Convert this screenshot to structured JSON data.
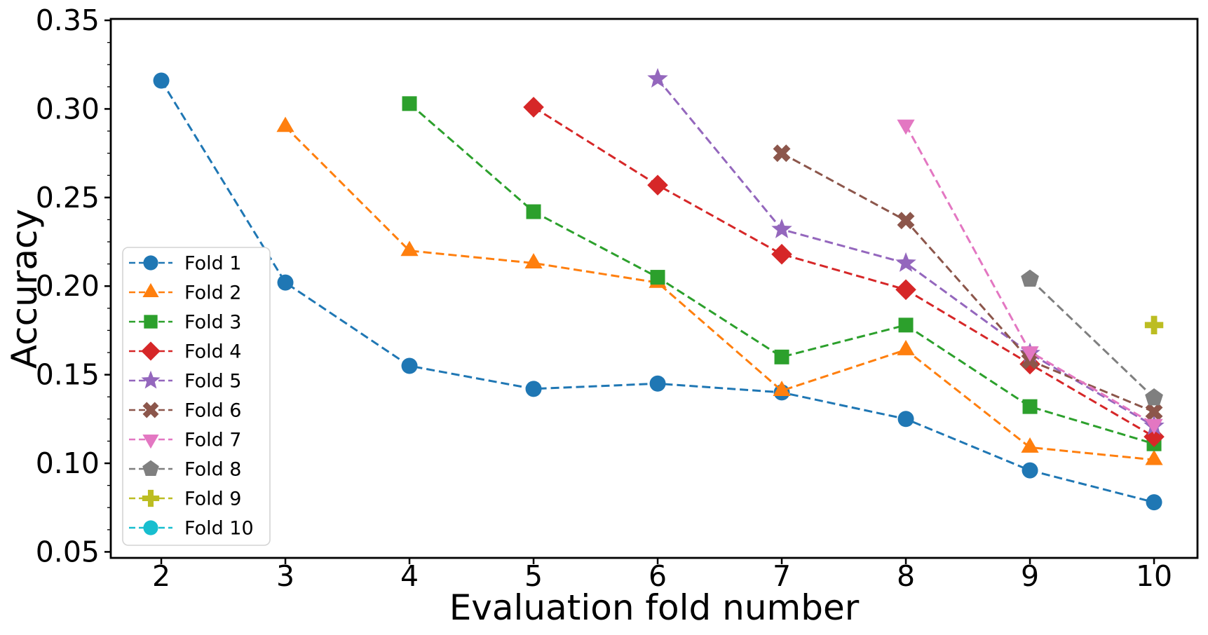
{
  "chart_data": {
    "type": "line",
    "title": "",
    "xlabel": "Evaluation fold number",
    "ylabel": "Accuracy",
    "xlim": [
      1.593,
      10.35
    ],
    "ylim": [
      0.0466,
      0.3508
    ],
    "x_ticks": [
      2,
      3,
      4,
      5,
      6,
      7,
      8,
      9,
      10
    ],
    "y_ticks": [
      0.05,
      0.1,
      0.15,
      0.2,
      0.25,
      0.3,
      0.35
    ],
    "y_tick_labels": [
      "0.05",
      "0.10",
      "0.15",
      "0.20",
      "0.25",
      "0.30",
      "0.35"
    ],
    "y_minor_tick_step": 0.0125,
    "grid": false,
    "line_style": "dashed",
    "legend_position": "lower-left",
    "axis_color": "#000000",
    "background_color": "#ffffff",
    "legend_border_color": "#d4d4d4",
    "series": [
      {
        "name": "Fold 1",
        "color": "#1f77b4",
        "marker": "circle",
        "points": [
          [
            2,
            0.316
          ],
          [
            3,
            0.202
          ],
          [
            4,
            0.155
          ],
          [
            5,
            0.142
          ],
          [
            6,
            0.145
          ],
          [
            7,
            0.14
          ],
          [
            8,
            0.125
          ],
          [
            9,
            0.096
          ],
          [
            10,
            0.078
          ]
        ]
      },
      {
        "name": "Fold 2",
        "color": "#ff7f0e",
        "marker": "triangle-up",
        "points": [
          [
            3,
            0.29
          ],
          [
            4,
            0.22
          ],
          [
            5,
            0.213
          ],
          [
            6,
            0.202
          ],
          [
            7,
            0.141
          ],
          [
            8,
            0.164
          ],
          [
            9,
            0.109
          ],
          [
            10,
            0.102
          ]
        ]
      },
      {
        "name": "Fold 3",
        "color": "#2ca02c",
        "marker": "square",
        "points": [
          [
            4,
            0.303
          ],
          [
            5,
            0.242
          ],
          [
            6,
            0.205
          ],
          [
            7,
            0.16
          ],
          [
            8,
            0.178
          ],
          [
            9,
            0.132
          ],
          [
            10,
            0.111
          ]
        ]
      },
      {
        "name": "Fold 4",
        "color": "#d62728",
        "marker": "diamond",
        "points": [
          [
            5,
            0.301
          ],
          [
            6,
            0.257
          ],
          [
            7,
            0.218
          ],
          [
            8,
            0.198
          ],
          [
            9,
            0.156
          ],
          [
            10,
            0.115
          ]
        ]
      },
      {
        "name": "Fold 5",
        "color": "#9467bd",
        "marker": "star",
        "points": [
          [
            6,
            0.317
          ],
          [
            7,
            0.232
          ],
          [
            8,
            0.213
          ],
          [
            9,
            0.162
          ],
          [
            10,
            0.121
          ]
        ]
      },
      {
        "name": "Fold 6",
        "color": "#8c564b",
        "marker": "x",
        "points": [
          [
            7,
            0.275
          ],
          [
            8,
            0.237
          ],
          [
            9,
            0.158
          ],
          [
            10,
            0.129
          ]
        ]
      },
      {
        "name": "Fold 7",
        "color": "#e377c2",
        "marker": "triangle-down",
        "points": [
          [
            8,
            0.291
          ],
          [
            9,
            0.163
          ],
          [
            10,
            0.122
          ]
        ]
      },
      {
        "name": "Fold 8",
        "color": "#7f7f7f",
        "marker": "pentagon",
        "points": [
          [
            9,
            0.204
          ],
          [
            10,
            0.137
          ]
        ]
      },
      {
        "name": "Fold 9",
        "color": "#bcbd22",
        "marker": "plus",
        "points": [
          [
            10,
            0.178
          ]
        ]
      },
      {
        "name": "Fold 10",
        "color": "#17becf",
        "marker": "circle",
        "points": []
      }
    ]
  }
}
